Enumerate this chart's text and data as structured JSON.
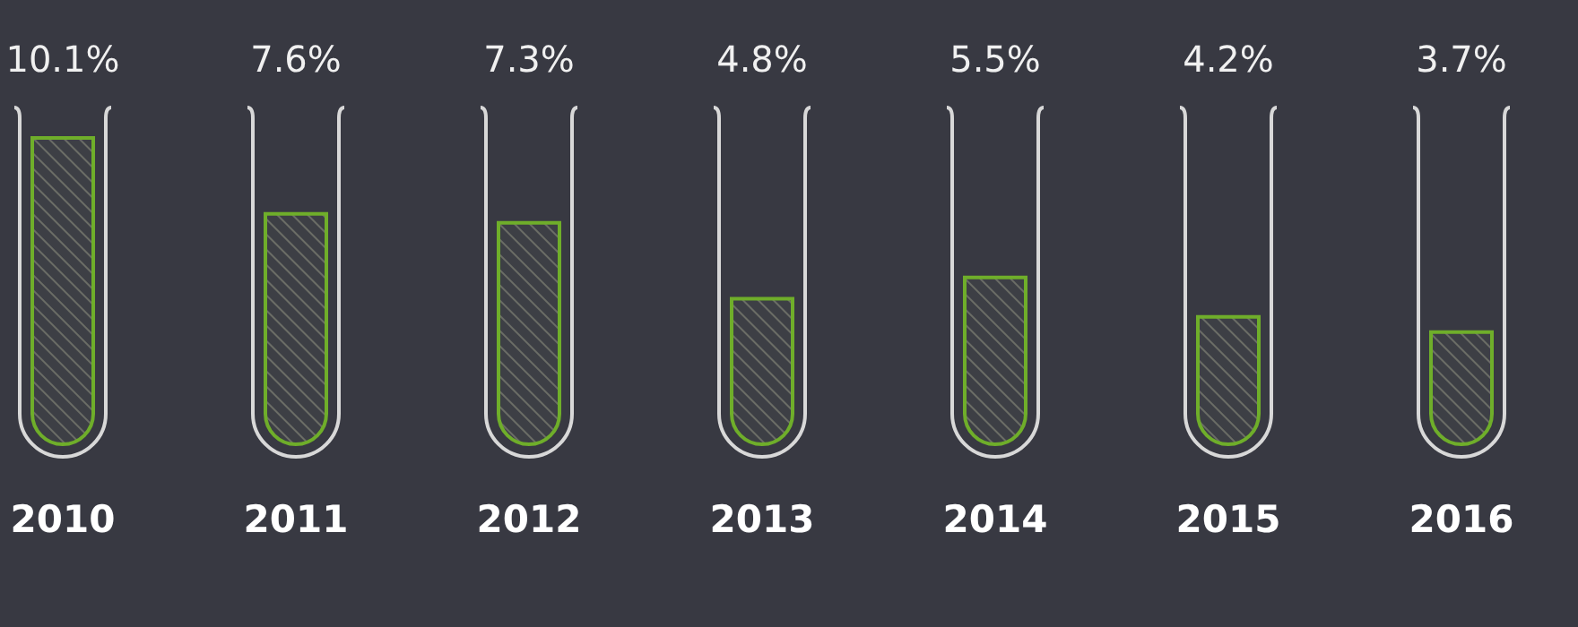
{
  "chart_data": {
    "type": "bar",
    "categories": [
      "2010",
      "2011",
      "2012",
      "2013",
      "2014",
      "2015",
      "2016"
    ],
    "values": [
      10.1,
      7.6,
      7.3,
      4.8,
      5.5,
      4.2,
      3.7
    ],
    "value_labels": [
      "10.1%",
      "7.6%",
      "7.3%",
      "4.8%",
      "5.5%",
      "4.2%",
      "3.7%"
    ],
    "color": "#6fae2a"
  }
}
